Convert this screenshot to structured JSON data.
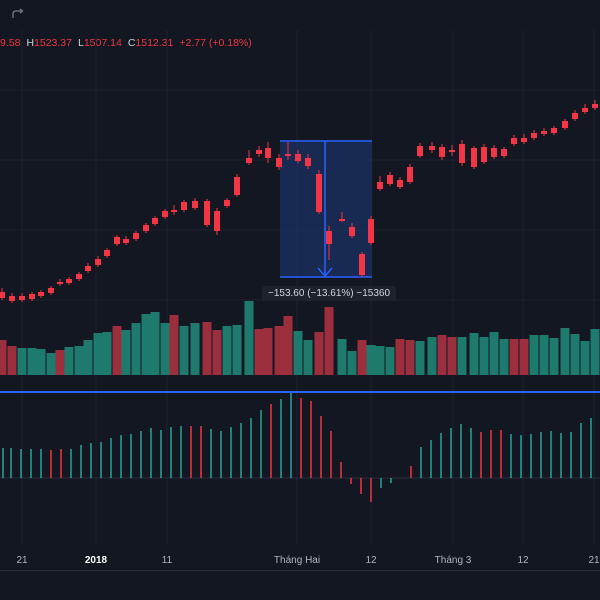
{
  "legend": {
    "open_fragment": "9.58",
    "high_key": "H",
    "high": "1523.37",
    "low_key": "L",
    "low": "1507.14",
    "close_key": "C",
    "close": "1512.31",
    "change": "+2.77 (+0.18%)"
  },
  "measure": {
    "label": "−153.60 (−13.61%) −15360"
  },
  "time_axis": {
    "labels": [
      "21",
      "2018",
      "11",
      "Tháng Hai",
      "12",
      "Tháng 3",
      "12",
      "21"
    ]
  },
  "colors": {
    "background": "#131722",
    "up": "#26a69a",
    "down": "#f23645",
    "volume_up": "#1f7a6e",
    "volume_down": "#9b2f3d",
    "measure_fill": "#1e3a78",
    "measure_line": "#2962ff",
    "separator": "#2962ff",
    "grid": "#1e222d",
    "text": "#d1d4dc"
  },
  "icons": {
    "redo": "redo-arrow-icon"
  }
}
